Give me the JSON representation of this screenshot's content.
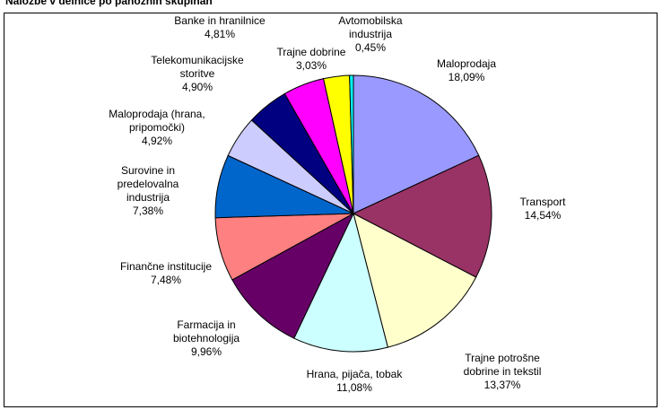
{
  "chart_data": {
    "type": "pie",
    "title": "Naložbe v delnice po panožnih skupinah",
    "categories": [
      "Maloprodaja",
      "Transport",
      "Trajne potrošne dobrine in tekstil",
      "Hrana, pijača, tobak",
      "Farmacija in biotehnologija",
      "Finančne institucije",
      "Surovine in predelovalna industrija",
      "Maloprodaja (hrana, pripomočki)",
      "Telekomunikacijske storitve",
      "Banke in hranilnice",
      "Trajne dobrine",
      "Avtomobilska industrija"
    ],
    "values": [
      18.09,
      14.54,
      13.37,
      11.08,
      9.96,
      7.48,
      7.38,
      4.92,
      4.9,
      4.81,
      3.03,
      0.45
    ],
    "value_labels": [
      "18,09%",
      "14,54%",
      "13,37%",
      "11,08%",
      "9,96%",
      "7,48%",
      "7,38%",
      "4,92%",
      "4,90%",
      "4,81%",
      "3,03%",
      "0,45%"
    ],
    "colors": [
      "#9999ff",
      "#993366",
      "#ffffcc",
      "#ccffff",
      "#660066",
      "#ff8080",
      "#0066cc",
      "#ccccff",
      "#000080",
      "#ff00ff",
      "#ffff00",
      "#00ffff"
    ]
  }
}
